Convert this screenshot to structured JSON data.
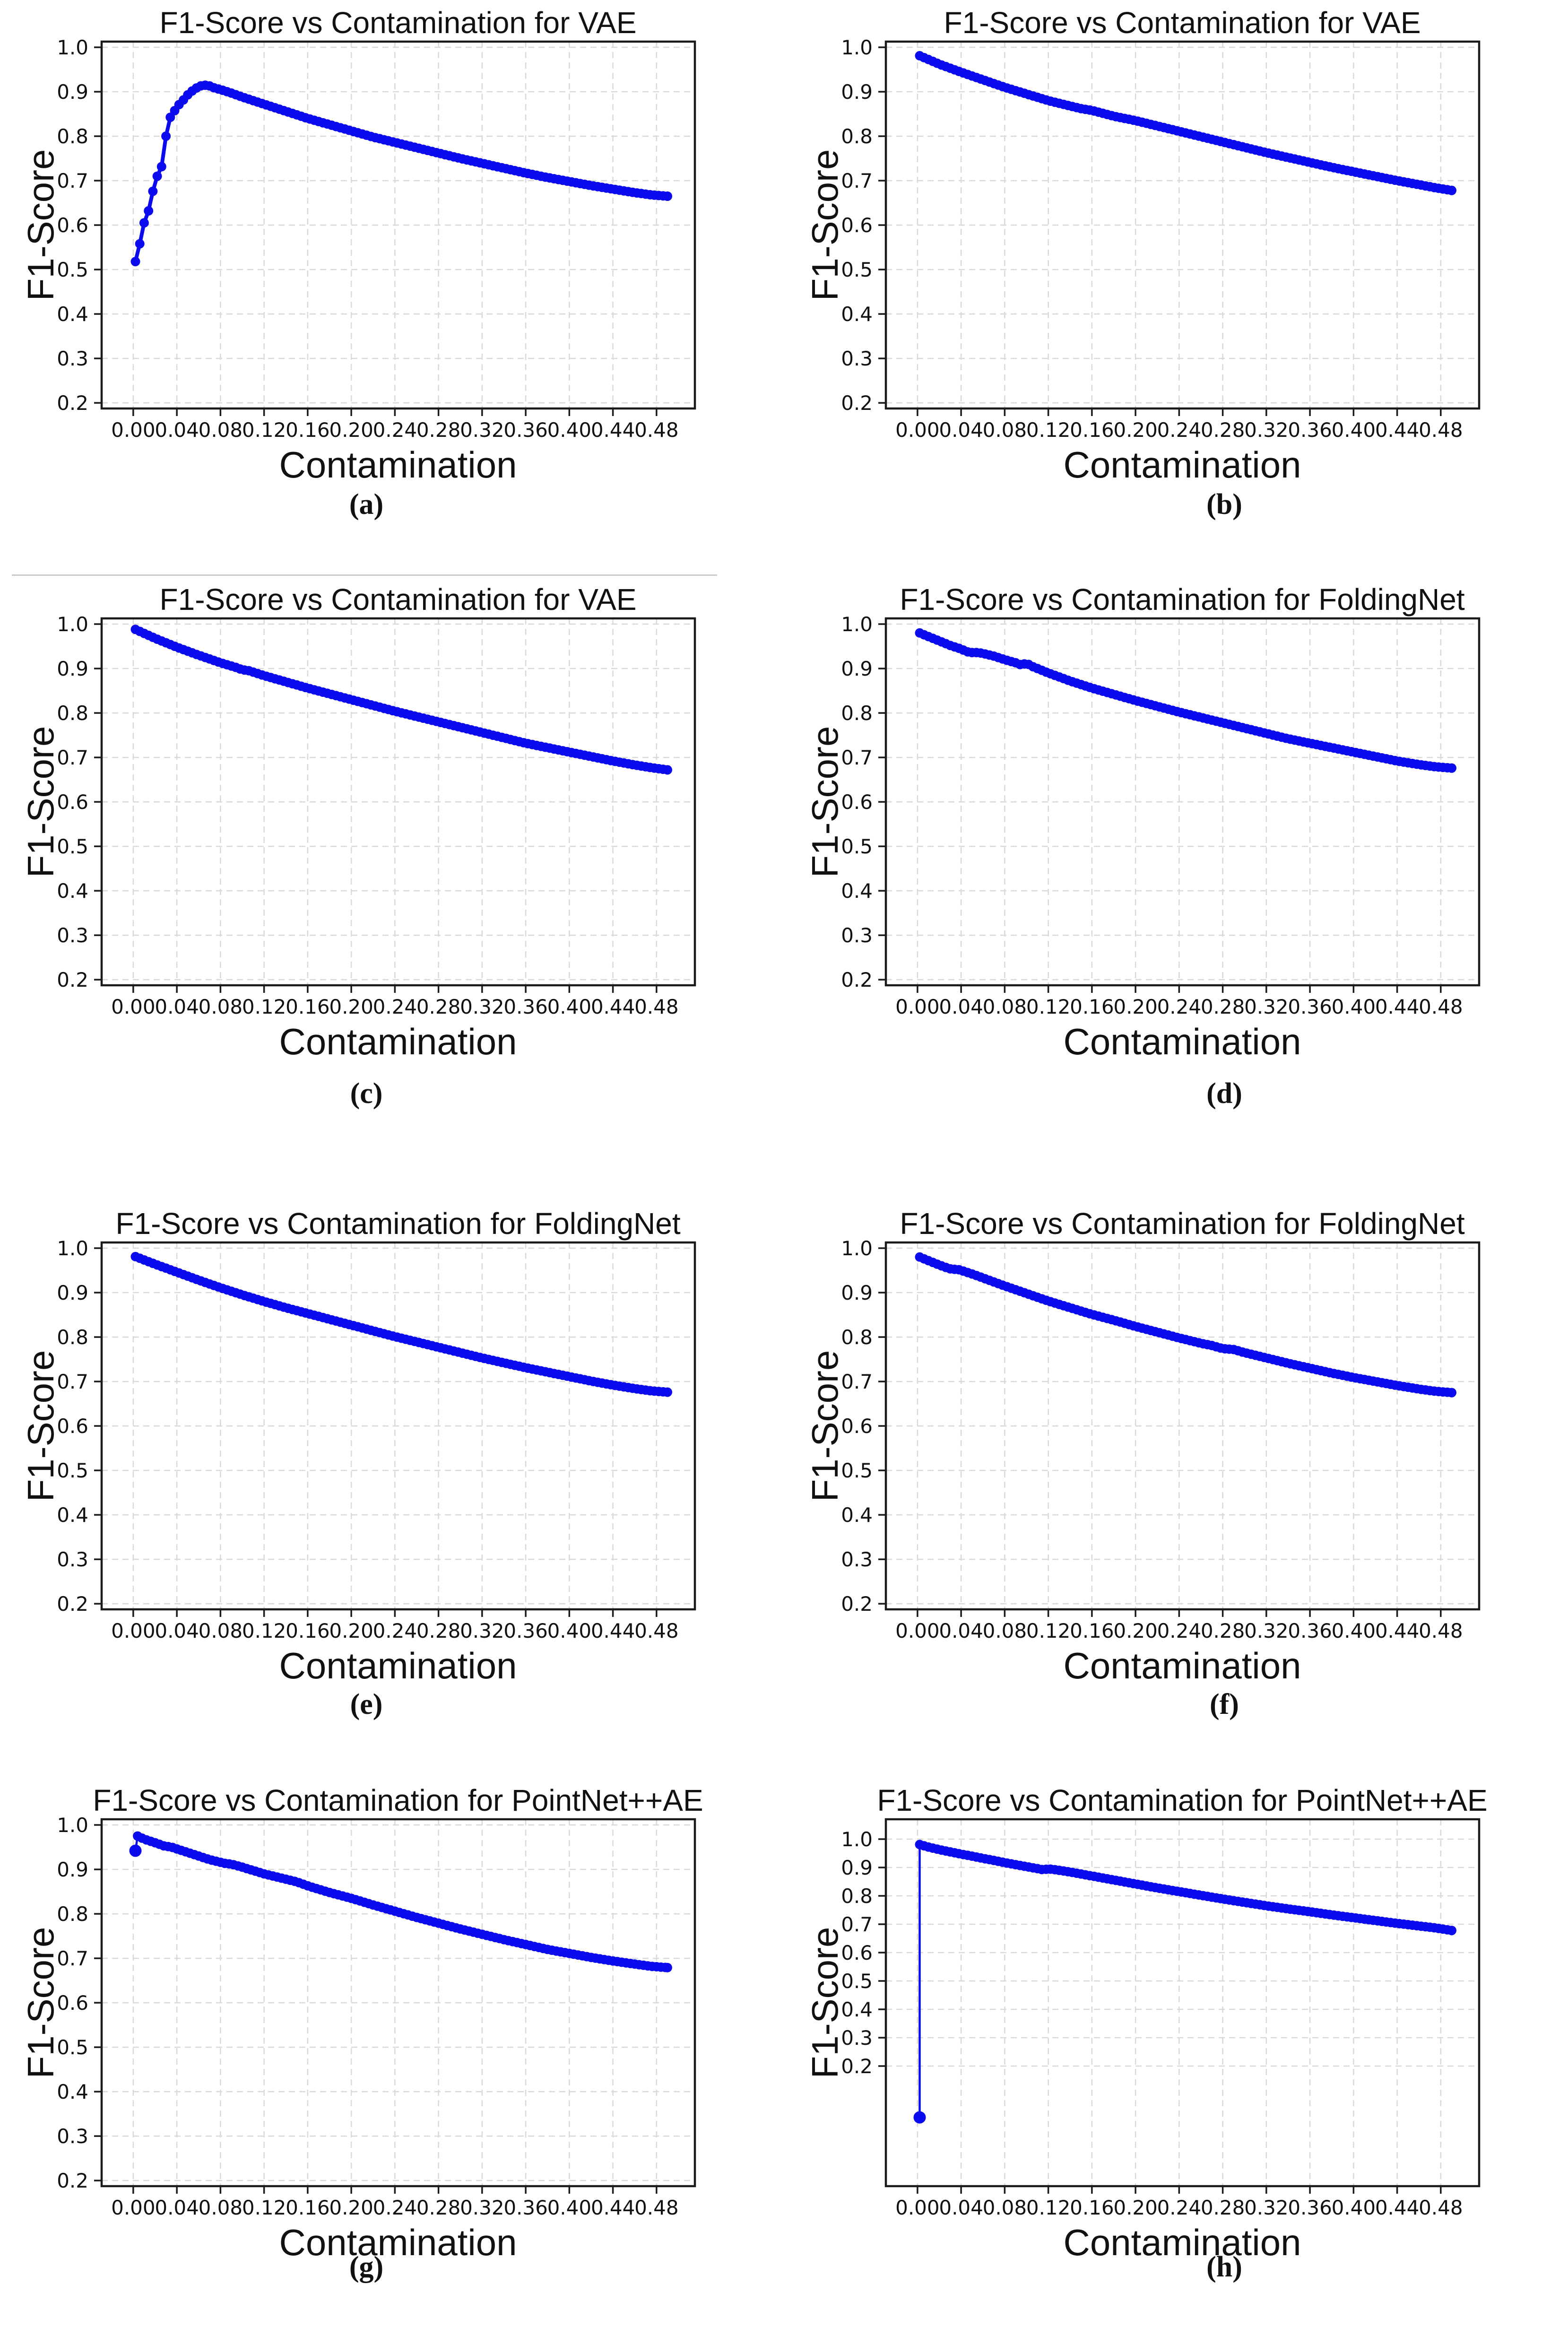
{
  "figure": {
    "x_axis_label": "Contamination",
    "y_axis_label": "F1-Score",
    "curve_color": "#0b0bee",
    "grid_color": "#d9d9d9",
    "frame_color": "#1a1a1a",
    "x_tick_labels": [
      "0.00",
      "0.04",
      "0.08",
      "0.12",
      "0.16",
      "0.20",
      "0.24",
      "0.28",
      "0.32",
      "0.36",
      "0.40",
      "0.44",
      "0.48"
    ],
    "x_tick_values": [
      0.0,
      0.04,
      0.08,
      0.12,
      0.16,
      0.2,
      0.24,
      0.28,
      0.32,
      0.36,
      0.4,
      0.44,
      0.48
    ],
    "y_tick_labels": [
      "1.0",
      "0.9",
      "0.8",
      "0.7",
      "0.6",
      "0.5",
      "0.4",
      "0.3",
      "0.2"
    ],
    "y_tick_values": [
      1.0,
      0.9,
      0.8,
      0.7,
      0.6,
      0.5,
      0.4,
      0.3,
      0.2
    ]
  },
  "chart_data": [
    {
      "id": "a",
      "type": "line",
      "panel_label": "(a)",
      "title": "F1-Score vs Contamination for VAE",
      "xlabel": "Contamination",
      "ylabel": "F1-Score",
      "xlim": [
        -0.029,
        0.5152
      ],
      "ylim": [
        0.1874,
        1.0128
      ],
      "grid": true,
      "series": [
        {
          "name": "F1-Score",
          "x": [
            0.002,
            0.004,
            0.006,
            0.008,
            0.01,
            0.012,
            0.014,
            0.015,
            0.017,
            0.019,
            0.021,
            0.023,
            0.025,
            0.027,
            0.028,
            0.029,
            0.03,
            0.032,
            0.033,
            0.035,
            0.037,
            0.039,
            0.041,
            0.043,
            0.045,
            0.047,
            0.05,
            0.053,
            0.056,
            0.06,
            0.065,
            0.07,
            0.075,
            0.08,
            0.09,
            0.1,
            0.11,
            0.12,
            0.13,
            0.14,
            0.15,
            0.16,
            0.18,
            0.2,
            0.22,
            0.24,
            0.26,
            0.28,
            0.3,
            0.32,
            0.34,
            0.36,
            0.38,
            0.4,
            0.42,
            0.44,
            0.46,
            0.475,
            0.49
          ],
          "y": [
            0.518,
            0.555,
            0.558,
            0.586,
            0.605,
            0.625,
            0.632,
            0.655,
            0.662,
            0.69,
            0.705,
            0.715,
            0.728,
            0.735,
            0.745,
            0.742,
            0.8,
            0.81,
            0.835,
            0.85,
            0.855,
            0.86,
            0.867,
            0.875,
            0.878,
            0.885,
            0.893,
            0.9,
            0.905,
            0.912,
            0.915,
            0.913,
            0.908,
            0.905,
            0.897,
            0.888,
            0.88,
            0.872,
            0.864,
            0.856,
            0.848,
            0.84,
            0.826,
            0.812,
            0.798,
            0.786,
            0.774,
            0.762,
            0.75,
            0.739,
            0.728,
            0.717,
            0.707,
            0.698,
            0.689,
            0.681,
            0.673,
            0.668,
            0.665
          ]
        }
      ]
    },
    {
      "id": "b",
      "type": "line",
      "panel_label": "(b)",
      "title": "F1-Score vs Contamination for VAE",
      "xlabel": "Contamination",
      "ylabel": "F1-Score",
      "xlim": [
        -0.029,
        0.5152
      ],
      "ylim": [
        0.1874,
        1.0128
      ],
      "grid": true,
      "series": [
        {
          "name": "F1-Score",
          "x": [
            0.002,
            0.02,
            0.04,
            0.06,
            0.08,
            0.1,
            0.12,
            0.14,
            0.15,
            0.16,
            0.18,
            0.2,
            0.22,
            0.24,
            0.26,
            0.28,
            0.3,
            0.32,
            0.34,
            0.36,
            0.38,
            0.4,
            0.42,
            0.44,
            0.46,
            0.475,
            0.49
          ],
          "y": [
            0.981,
            0.962,
            0.944,
            0.927,
            0.91,
            0.895,
            0.88,
            0.868,
            0.862,
            0.858,
            0.845,
            0.835,
            0.823,
            0.811,
            0.799,
            0.787,
            0.775,
            0.763,
            0.752,
            0.741,
            0.73,
            0.72,
            0.71,
            0.7,
            0.691,
            0.684,
            0.678
          ]
        }
      ]
    },
    {
      "id": "c",
      "type": "line",
      "panel_label": "(c)",
      "title": "F1-Score vs Contamination for VAE",
      "xlabel": "Contamination",
      "ylabel": "F1-Score",
      "xlim": [
        -0.029,
        0.5152
      ],
      "ylim": [
        0.1874,
        1.0128
      ],
      "grid": true,
      "series": [
        {
          "name": "F1-Score",
          "x": [
            0.002,
            0.02,
            0.04,
            0.06,
            0.08,
            0.095,
            0.1,
            0.105,
            0.12,
            0.14,
            0.16,
            0.18,
            0.2,
            0.22,
            0.24,
            0.26,
            0.28,
            0.3,
            0.32,
            0.34,
            0.36,
            0.38,
            0.4,
            0.42,
            0.44,
            0.46,
            0.475,
            0.49
          ],
          "y": [
            0.988,
            0.968,
            0.948,
            0.93,
            0.913,
            0.902,
            0.897,
            0.896,
            0.884,
            0.87,
            0.856,
            0.843,
            0.83,
            0.817,
            0.804,
            0.792,
            0.78,
            0.768,
            0.756,
            0.744,
            0.732,
            0.722,
            0.712,
            0.702,
            0.692,
            0.683,
            0.677,
            0.672
          ]
        }
      ]
    },
    {
      "id": "d",
      "type": "line",
      "panel_label": "(d)",
      "title": "F1-Score vs Contamination for FoldingNet",
      "xlabel": "Contamination",
      "ylabel": "F1-Score",
      "xlim": [
        -0.029,
        0.5152
      ],
      "ylim": [
        0.1874,
        1.0128
      ],
      "grid": true,
      "series": [
        {
          "name": "F1-Score",
          "x": [
            0.002,
            0.01,
            0.02,
            0.03,
            0.04,
            0.045,
            0.05,
            0.055,
            0.06,
            0.07,
            0.08,
            0.09,
            0.095,
            0.1,
            0.105,
            0.11,
            0.12,
            0.14,
            0.16,
            0.18,
            0.2,
            0.22,
            0.24,
            0.26,
            0.28,
            0.3,
            0.32,
            0.34,
            0.36,
            0.38,
            0.4,
            0.42,
            0.44,
            0.46,
            0.475,
            0.49
          ],
          "y": [
            0.98,
            0.972,
            0.962,
            0.952,
            0.944,
            0.938,
            0.936,
            0.936,
            0.934,
            0.928,
            0.92,
            0.913,
            0.908,
            0.912,
            0.905,
            0.9,
            0.89,
            0.872,
            0.856,
            0.842,
            0.828,
            0.815,
            0.802,
            0.79,
            0.778,
            0.766,
            0.754,
            0.742,
            0.732,
            0.722,
            0.712,
            0.702,
            0.692,
            0.684,
            0.679,
            0.676
          ]
        }
      ]
    },
    {
      "id": "e",
      "type": "line",
      "panel_label": "(e)",
      "title": "F1-Score vs Contamination for FoldingNet",
      "xlabel": "Contamination",
      "ylabel": "F1-Score",
      "xlim": [
        -0.029,
        0.5152
      ],
      "ylim": [
        0.1874,
        1.0128
      ],
      "grid": true,
      "series": [
        {
          "name": "F1-Score",
          "x": [
            0.002,
            0.02,
            0.04,
            0.06,
            0.08,
            0.1,
            0.12,
            0.14,
            0.16,
            0.18,
            0.2,
            0.22,
            0.24,
            0.26,
            0.28,
            0.3,
            0.32,
            0.34,
            0.36,
            0.38,
            0.4,
            0.42,
            0.44,
            0.46,
            0.475,
            0.49
          ],
          "y": [
            0.981,
            0.964,
            0.946,
            0.928,
            0.911,
            0.895,
            0.88,
            0.866,
            0.853,
            0.84,
            0.827,
            0.814,
            0.801,
            0.789,
            0.777,
            0.765,
            0.753,
            0.742,
            0.731,
            0.721,
            0.711,
            0.701,
            0.692,
            0.684,
            0.679,
            0.676
          ]
        }
      ]
    },
    {
      "id": "f",
      "type": "line",
      "panel_label": "(f)",
      "title": "F1-Score vs Contamination for FoldingNet",
      "xlabel": "Contamination",
      "ylabel": "F1-Score",
      "xlim": [
        -0.029,
        0.5152
      ],
      "ylim": [
        0.1874,
        1.0128
      ],
      "grid": true,
      "series": [
        {
          "name": "F1-Score",
          "x": [
            0.002,
            0.01,
            0.02,
            0.028,
            0.032,
            0.036,
            0.04,
            0.05,
            0.06,
            0.08,
            0.1,
            0.12,
            0.14,
            0.16,
            0.18,
            0.2,
            0.22,
            0.24,
            0.26,
            0.27,
            0.28,
            0.29,
            0.3,
            0.32,
            0.34,
            0.36,
            0.38,
            0.4,
            0.42,
            0.44,
            0.46,
            0.475,
            0.49
          ],
          "y": [
            0.98,
            0.972,
            0.962,
            0.955,
            0.952,
            0.953,
            0.95,
            0.942,
            0.933,
            0.915,
            0.898,
            0.881,
            0.866,
            0.851,
            0.838,
            0.824,
            0.811,
            0.798,
            0.786,
            0.781,
            0.774,
            0.772,
            0.765,
            0.753,
            0.741,
            0.73,
            0.719,
            0.709,
            0.7,
            0.691,
            0.683,
            0.678,
            0.675
          ]
        }
      ]
    },
    {
      "id": "g",
      "type": "line",
      "panel_label": "(g)",
      "title": "F1-Score vs Contamination for PointNet++AE",
      "xlabel": "Contamination",
      "ylabel": "F1-Score",
      "xlim": [
        -0.029,
        0.5152
      ],
      "ylim": [
        0.1874,
        1.0128
      ],
      "grid": true,
      "isolated_point": {
        "x": 0.002,
        "y": 0.942
      },
      "series": [
        {
          "name": "F1-Score",
          "x": [
            0.004,
            0.01,
            0.02,
            0.028,
            0.03,
            0.033,
            0.04,
            0.05,
            0.06,
            0.07,
            0.08,
            0.085,
            0.09,
            0.1,
            0.12,
            0.14,
            0.15,
            0.16,
            0.18,
            0.2,
            0.22,
            0.24,
            0.26,
            0.28,
            0.3,
            0.32,
            0.34,
            0.36,
            0.38,
            0.4,
            0.42,
            0.44,
            0.46,
            0.475,
            0.49
          ],
          "y": [
            0.975,
            0.968,
            0.96,
            0.953,
            0.95,
            0.952,
            0.946,
            0.938,
            0.93,
            0.922,
            0.916,
            0.913,
            0.912,
            0.905,
            0.89,
            0.878,
            0.872,
            0.863,
            0.848,
            0.835,
            0.82,
            0.806,
            0.792,
            0.779,
            0.766,
            0.754,
            0.742,
            0.731,
            0.72,
            0.711,
            0.702,
            0.694,
            0.687,
            0.682,
            0.679
          ]
        }
      ]
    },
    {
      "id": "h",
      "type": "line",
      "panel_label": "(h)",
      "title": "F1-Score vs Contamination for PointNet++AE",
      "xlabel": "Contamination",
      "ylabel": "F1-Score",
      "xlim": [
        -0.029,
        0.5152
      ],
      "ylim": [
        -0.2233,
        1.07
      ],
      "grid": true,
      "isolated_point": {
        "x": 0.002,
        "y": 0.019
      },
      "series": [
        {
          "name": "F1-Score",
          "x": [
            0.002,
            0.01,
            0.02,
            0.03,
            0.04,
            0.05,
            0.06,
            0.07,
            0.08,
            0.09,
            0.1,
            0.11,
            0.115,
            0.12,
            0.125,
            0.13,
            0.14,
            0.16,
            0.18,
            0.2,
            0.22,
            0.24,
            0.26,
            0.28,
            0.3,
            0.32,
            0.34,
            0.36,
            0.38,
            0.4,
            0.42,
            0.44,
            0.46,
            0.475,
            0.49
          ],
          "y": [
            0.981,
            0.972,
            0.963,
            0.955,
            0.947,
            0.94,
            0.932,
            0.925,
            0.917,
            0.91,
            0.903,
            0.896,
            0.892,
            0.895,
            0.893,
            0.89,
            0.884,
            0.87,
            0.856,
            0.842,
            0.828,
            0.815,
            0.802,
            0.789,
            0.777,
            0.765,
            0.754,
            0.744,
            0.733,
            0.723,
            0.713,
            0.703,
            0.694,
            0.687,
            0.678
          ]
        }
      ]
    }
  ]
}
